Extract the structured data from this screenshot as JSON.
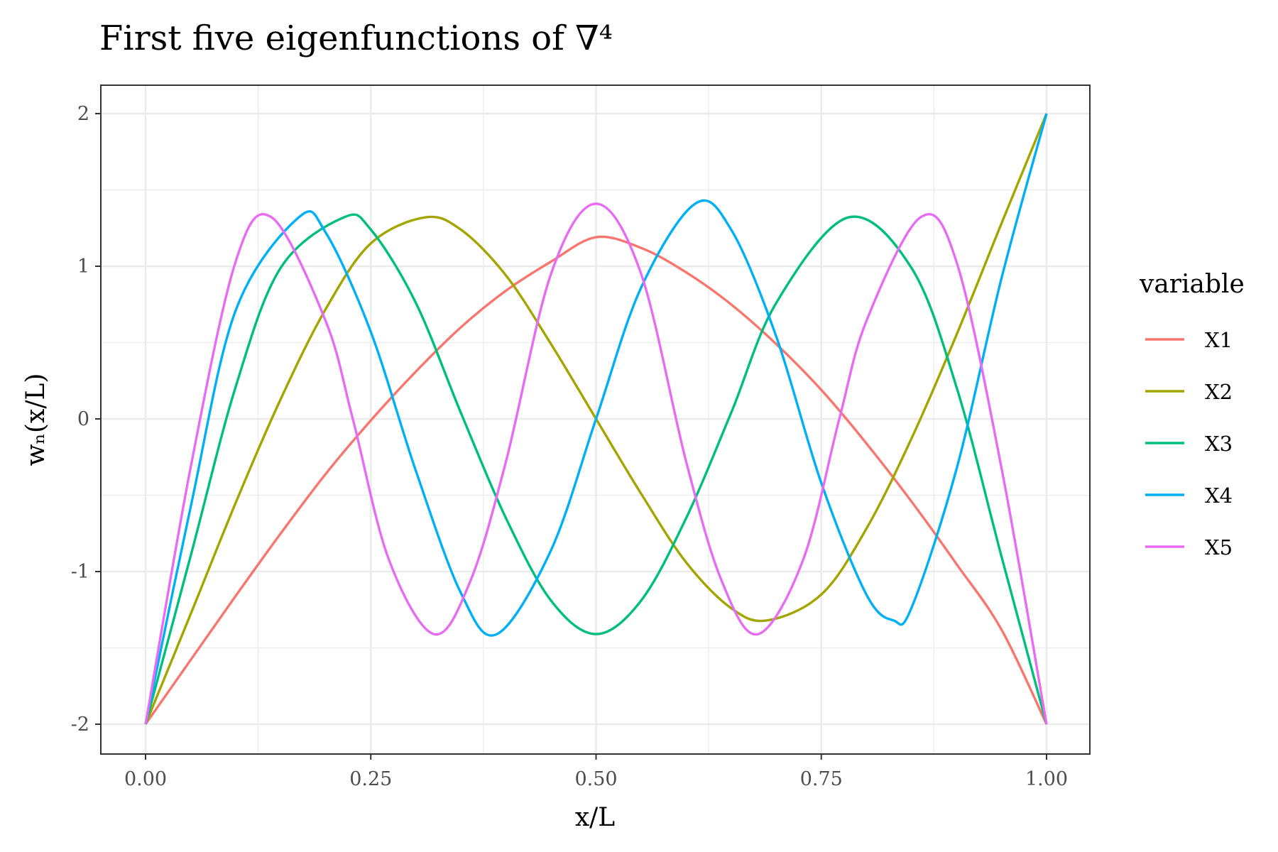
{
  "chart_data": {
    "type": "line",
    "title": "First five eigenfunctions of ∇⁴",
    "xlabel": "x/L",
    "ylabel": "wₙ(x/L)",
    "xlim": [
      0,
      1
    ],
    "ylim": [
      -2.19,
      2.19
    ],
    "x_ticks": [
      "0.00",
      "0.25",
      "0.50",
      "0.75",
      "1.00"
    ],
    "y_ticks": [
      "-2",
      "-1",
      "0",
      "1",
      "2"
    ],
    "grid": true,
    "legend": {
      "title": "variable",
      "position": "right"
    },
    "series": [
      {
        "name": "X1",
        "color": "#F8766D",
        "x": [
          0,
          0.05,
          0.1,
          0.15,
          0.2,
          0.25,
          0.3,
          0.35,
          0.4,
          0.45,
          0.5,
          0.55,
          0.6,
          0.65,
          0.7,
          0.75,
          0.8,
          0.85,
          0.9,
          0.95,
          1
        ],
        "y": [
          -2,
          -1.58,
          -1.16,
          -0.75,
          -0.36,
          -0.01,
          0.31,
          0.6,
          0.84,
          1.03,
          1.19,
          1.12,
          0.96,
          0.75,
          0.49,
          0.19,
          -0.16,
          -0.54,
          -0.95,
          -1.38,
          -2
        ]
      },
      {
        "name": "X2",
        "color": "#A3A500",
        "x": [
          0,
          0.05,
          0.1,
          0.15,
          0.2,
          0.25,
          0.31,
          0.35,
          0.4,
          0.45,
          0.5,
          0.55,
          0.6,
          0.65,
          0.69,
          0.75,
          0.8,
          0.85,
          0.9,
          0.95,
          1
        ],
        "y": [
          -2,
          -1.28,
          -0.55,
          0.13,
          0.72,
          1.15,
          1.32,
          1.24,
          0.94,
          0.49,
          0,
          -0.49,
          -0.94,
          -1.24,
          -1.32,
          -1.15,
          -0.72,
          -0.13,
          0.55,
          1.28,
          2
        ]
      },
      {
        "name": "X3",
        "color": "#00BF7D",
        "x": [
          0,
          0.05,
          0.1,
          0.15,
          0.22,
          0.25,
          0.3,
          0.35,
          0.4,
          0.45,
          0.5,
          0.55,
          0.6,
          0.65,
          0.7,
          0.78,
          0.85,
          0.9,
          0.95,
          1
        ],
        "y": [
          -2,
          -0.9,
          0.21,
          0.99,
          1.32,
          1.24,
          0.76,
          0.04,
          -0.65,
          -1.19,
          -1.41,
          -1.19,
          -0.65,
          0.04,
          0.76,
          1.32,
          0.99,
          0.21,
          -0.9,
          -2
        ]
      },
      {
        "name": "X4",
        "color": "#00B0F6",
        "x": [
          0,
          0.05,
          0.1,
          0.17,
          0.2,
          0.25,
          0.3,
          0.35,
          0.39,
          0.45,
          0.5,
          0.55,
          0.61,
          0.65,
          0.7,
          0.75,
          0.8,
          0.83,
          0.85,
          0.9,
          0.95,
          1
        ],
        "y": [
          -2,
          -0.58,
          0.71,
          1.32,
          1.22,
          0.57,
          -0.34,
          -1.14,
          -1.41,
          -0.86,
          0,
          0.86,
          1.41,
          1.24,
          0.54,
          -0.42,
          -1.15,
          -1.32,
          -1.24,
          -0.33,
          0.92,
          2
        ]
      },
      {
        "name": "X5",
        "color": "#E76BF3",
        "x": [
          0,
          0.05,
          0.1,
          0.14,
          0.2,
          0.23,
          0.27,
          0.32,
          0.36,
          0.4,
          0.45,
          0.5,
          0.55,
          0.6,
          0.64,
          0.68,
          0.73,
          0.77,
          0.8,
          0.86,
          0.9,
          0.95,
          1
        ],
        "y": [
          -2,
          -0.32,
          1.03,
          1.32,
          0.64,
          0,
          -0.92,
          -1.41,
          -1.07,
          -0.28,
          0.95,
          1.41,
          0.95,
          -0.28,
          -1.07,
          -1.41,
          -0.92,
          0,
          0.64,
          1.32,
          1.03,
          -0.32,
          -2
        ]
      }
    ]
  }
}
